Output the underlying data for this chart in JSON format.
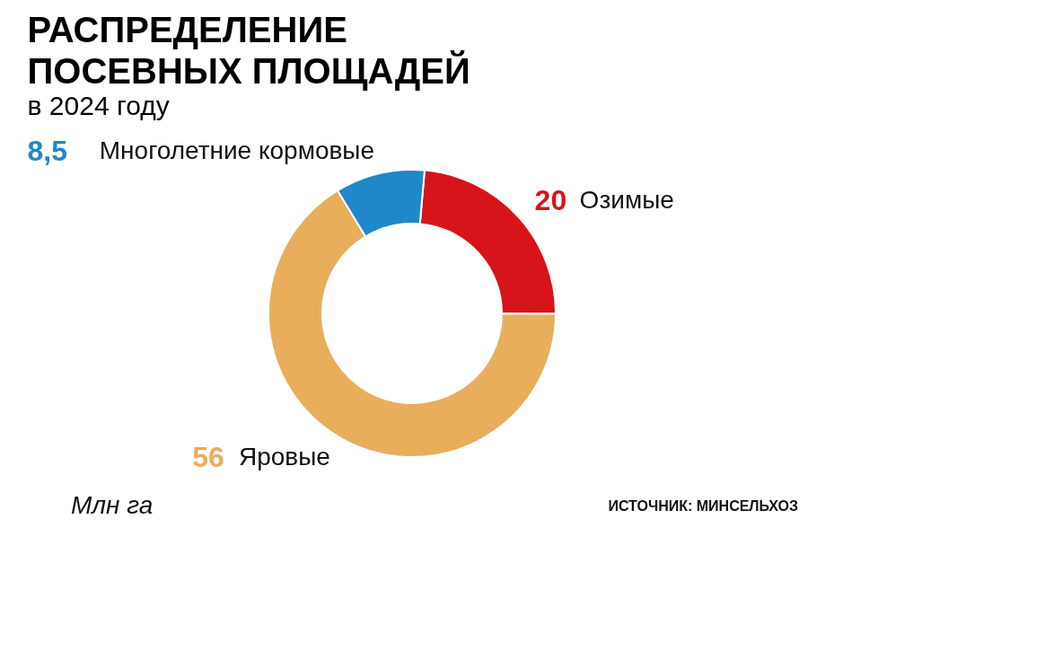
{
  "chart_data": {
    "type": "donut",
    "title": [
      "РАСПРЕДЕЛЕНИЕ",
      "ПОСЕВНЫХ ПЛОЩАДЕЙ"
    ],
    "subtitle": "в 2024 году",
    "categories": [
      "Озимые",
      "Яровые",
      "Многолетние кормовые"
    ],
    "values": [
      20,
      56,
      8.5
    ],
    "colors": [
      "#d7141a",
      "#e8ae5c",
      "#1e88c8"
    ],
    "value_labels": [
      "20",
      "56",
      "8,5"
    ],
    "legend": false,
    "annotations": [
      "Млн га",
      "ИСТОЧНИК: МИНСЕЛЬХОЗ"
    ]
  }
}
